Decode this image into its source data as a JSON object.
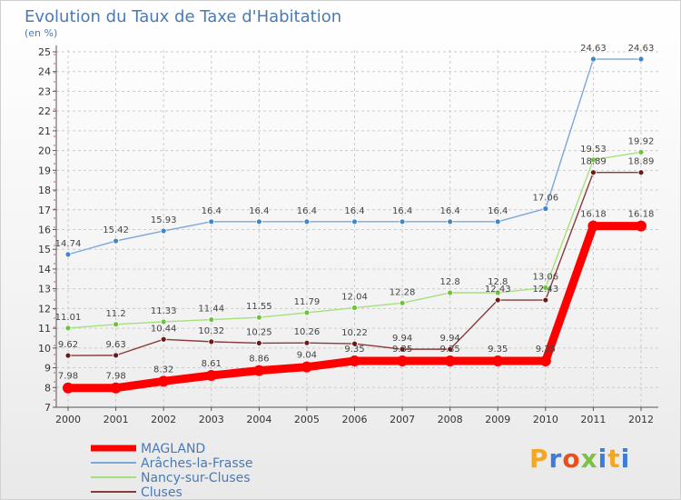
{
  "chart_data": {
    "type": "line",
    "title": "Evolution du Taux de Taxe d'Habitation",
    "subtitle": "(en %)",
    "x": [
      "2000",
      "2001",
      "2002",
      "2003",
      "2004",
      "2005",
      "2006",
      "2007",
      "2008",
      "2009",
      "2010",
      "2011",
      "2012"
    ],
    "ylim": [
      7,
      25
    ],
    "yticks": [
      7,
      8,
      9,
      10,
      11,
      12,
      13,
      14,
      15,
      16,
      17,
      18,
      19,
      20,
      21,
      22,
      23,
      24,
      25
    ],
    "series": [
      {
        "name": "MAGLAND",
        "color": "#ff0000",
        "thick": true,
        "values": [
          7.98,
          7.98,
          8.32,
          8.61,
          8.86,
          9.04,
          9.35,
          9.35,
          9.35,
          9.35,
          9.35,
          16.18,
          16.18
        ],
        "labels": [
          "7.98",
          "7.98",
          "8.32",
          "8.61",
          "8.86",
          "9.04",
          "9.35",
          "9.35",
          "9.35",
          "9.35",
          "9.35",
          "16.18",
          "16.18"
        ]
      },
      {
        "name": "Arâches-la-Frasse",
        "color": "#7da7d9",
        "marker": "#3f88c8",
        "values": [
          14.74,
          15.42,
          15.93,
          16.4,
          16.4,
          16.4,
          16.4,
          16.4,
          16.4,
          16.4,
          17.06,
          24.63,
          24.63
        ],
        "labels": [
          "14.74",
          "15.42",
          "15.93",
          "16.4",
          "16.4",
          "16.4",
          "16.4",
          "16.4",
          "16.4",
          "16.4",
          "17.06",
          "24.63",
          "24.63"
        ]
      },
      {
        "name": "Nancy-sur-Cluses",
        "color": "#a6e07a",
        "marker": "#6cc43a",
        "values": [
          11.01,
          11.2,
          11.33,
          11.44,
          11.55,
          11.79,
          12.04,
          12.28,
          12.8,
          12.8,
          13.06,
          19.53,
          19.92
        ],
        "labels": [
          "11.01",
          "11.2",
          "11.33",
          "11.44",
          "11.55",
          "11.79",
          "12.04",
          "12.28",
          "12.8",
          "12.8",
          "13.06",
          "19.53",
          "19.92"
        ]
      },
      {
        "name": "Cluses",
        "color": "#8b3a3a",
        "marker": "#6b1a1a",
        "values": [
          9.62,
          9.63,
          10.44,
          10.32,
          10.25,
          10.26,
          10.22,
          9.94,
          9.94,
          12.43,
          12.43,
          18.89,
          18.89
        ],
        "labels": [
          "9.62",
          "9.63",
          "10.44",
          "10.32",
          "10.25",
          "10.26",
          "10.22",
          "9.94",
          "9.94",
          "12.43",
          "12.43",
          "18.89",
          "18.89"
        ]
      }
    ],
    "legend_position": "bottom-left"
  },
  "brand": {
    "logo_text": "Proxiti",
    "logo_colors": [
      "#f5a623",
      "#3b7dd8",
      "#e94e1b",
      "#7cc242",
      "#3b7dd8",
      "#f5a623",
      "#3b7dd8"
    ]
  }
}
